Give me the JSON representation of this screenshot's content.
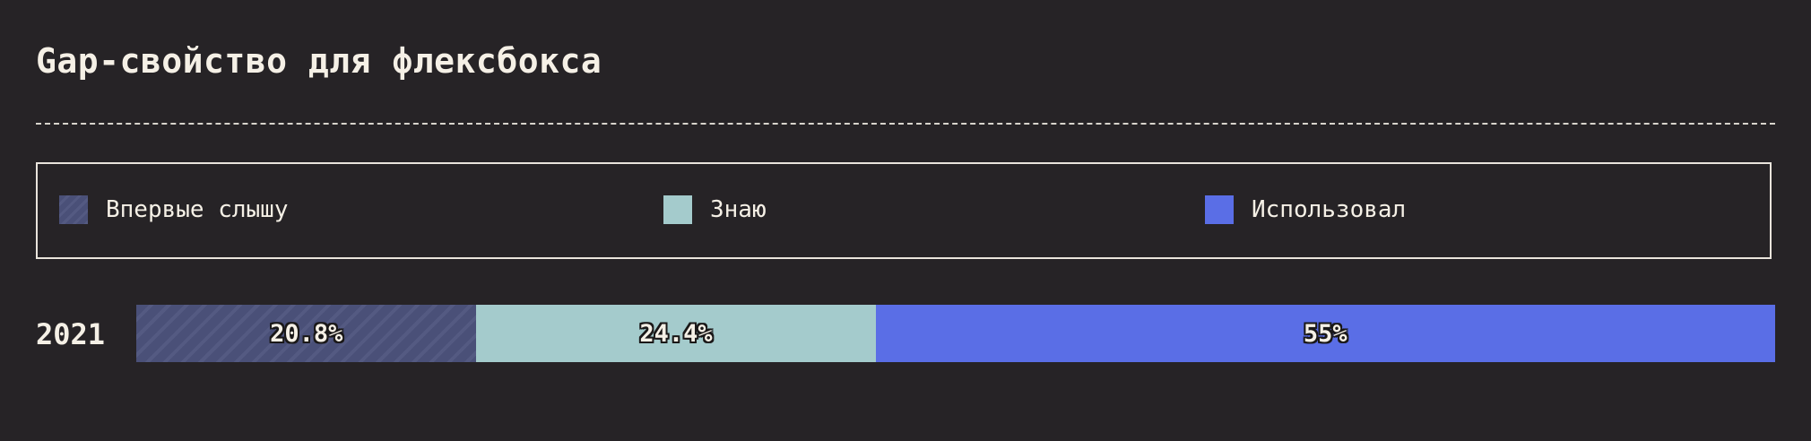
{
  "title": "Gap-свойство для флексбокса",
  "colors": {
    "background": "#262326",
    "never_heard": "#4a5078",
    "never_heard_stripe": "#545a82",
    "know": "#a4cbcc",
    "used": "#5a6ee6"
  },
  "legend": [
    {
      "label": "Впервые слышу",
      "color": "#4a5078"
    },
    {
      "label": "Знаю",
      "color": "#a4cbcc"
    },
    {
      "label": "Использовал",
      "color": "#5a6ee6"
    }
  ],
  "chart_data": {
    "type": "bar",
    "stacked": true,
    "orientation": "horizontal",
    "title": "Gap-свойство для флексбокса",
    "categories": [
      "2021"
    ],
    "series": [
      {
        "name": "Впервые слышу",
        "values": [
          20.8
        ],
        "label": "20.8%"
      },
      {
        "name": "Знаю",
        "values": [
          24.4
        ],
        "label": "24.4%"
      },
      {
        "name": "Использовал",
        "values": [
          55
        ],
        "label": "55%"
      }
    ],
    "xlim": [
      0,
      100
    ],
    "legend_position": "top",
    "grid": false
  }
}
